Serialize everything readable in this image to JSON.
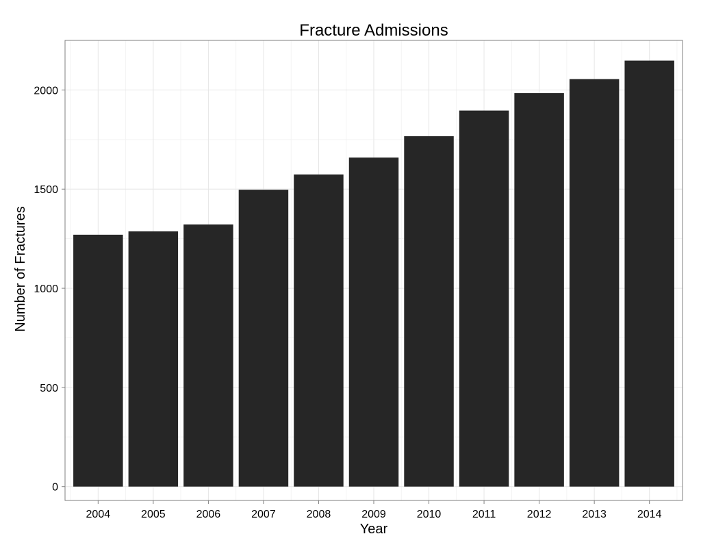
{
  "chart_data": {
    "type": "bar",
    "title": "Fracture Admissions",
    "xlabel": "Year",
    "ylabel": "Number of Fractures",
    "categories": [
      "2004",
      "2005",
      "2006",
      "2007",
      "2008",
      "2009",
      "2010",
      "2011",
      "2012",
      "2013",
      "2014"
    ],
    "values": [
      1270,
      1287,
      1322,
      1497,
      1574,
      1659,
      1767,
      1896,
      1984,
      2055,
      2148
    ],
    "ylim": [
      -70,
      2250
    ],
    "yticks": [
      0,
      500,
      1000,
      1500,
      2000
    ],
    "ytick_labels": [
      "0",
      "500",
      "1000",
      "1500",
      "2000"
    ],
    "grid": true,
    "bar_color": "#262626",
    "panel_background": "#ffffff",
    "grid_color": "#e6e6e6"
  }
}
